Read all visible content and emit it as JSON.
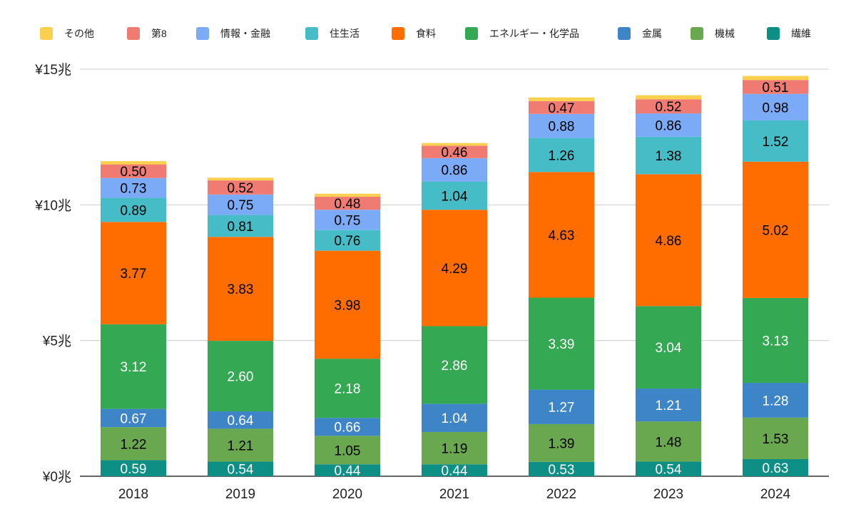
{
  "chart_data": {
    "type": "bar",
    "stacked": true,
    "title": "",
    "xlabel": "",
    "ylabel": "",
    "ylim": [
      0,
      15
    ],
    "yticks": [
      {
        "value": 0,
        "label": "¥0兆"
      },
      {
        "value": 5,
        "label": "¥5兆"
      },
      {
        "value": 10,
        "label": "¥10兆"
      },
      {
        "value": 15,
        "label": "¥15兆"
      }
    ],
    "grid": true,
    "legend_position": "top",
    "categories": [
      "2018",
      "2019",
      "2020",
      "2021",
      "2022",
      "2023",
      "2024"
    ],
    "series": [
      {
        "name": "繊維",
        "color": "#0e8f86",
        "label_color": "#ffffff",
        "values": [
          0.59,
          0.54,
          0.44,
          0.44,
          0.53,
          0.54,
          0.63
        ]
      },
      {
        "name": "機械",
        "color": "#6aa84f",
        "label_color": "#000000",
        "values": [
          1.22,
          1.21,
          1.05,
          1.19,
          1.39,
          1.48,
          1.53
        ]
      },
      {
        "name": "金属",
        "color": "#3d85c6",
        "label_color": "#ffffff",
        "values": [
          0.67,
          0.64,
          0.66,
          1.04,
          1.27,
          1.21,
          1.28
        ]
      },
      {
        "name": "エネルギー・化学品",
        "color": "#34a853",
        "label_color": "#ffffff",
        "values": [
          3.12,
          2.6,
          2.18,
          2.86,
          3.39,
          3.04,
          3.13
        ]
      },
      {
        "name": "食料",
        "color": "#ff6d01",
        "label_color": "#000000",
        "values": [
          3.77,
          3.83,
          3.98,
          4.29,
          4.63,
          4.86,
          5.02
        ]
      },
      {
        "name": "住生活",
        "color": "#46bdc6",
        "label_color": "#000000",
        "values": [
          0.89,
          0.81,
          0.76,
          1.04,
          1.26,
          1.38,
          1.52
        ]
      },
      {
        "name": "情報・金融",
        "color": "#7baaf7",
        "label_color": "#000000",
        "values": [
          0.73,
          0.75,
          0.75,
          0.86,
          0.88,
          0.86,
          0.98
        ]
      },
      {
        "name": "第8",
        "color": "#f07b72",
        "label_color": "#000000",
        "values": [
          0.5,
          0.52,
          0.48,
          0.46,
          0.47,
          0.52,
          0.51
        ]
      },
      {
        "name": "その他",
        "color": "#fcd04f",
        "label_color": "#000000",
        "values": [
          0.12,
          0.1,
          0.11,
          0.1,
          0.14,
          0.15,
          0.15
        ]
      }
    ],
    "value_labels_shown_for": [
      "繊維",
      "機械",
      "金属",
      "エネルギー・化学品",
      "食料",
      "住生活",
      "情報・金融",
      "第8"
    ],
    "legend_order": [
      "その他",
      "第8",
      "情報・金融",
      "住生活",
      "食料",
      "エネルギー・化学品",
      "金属",
      "機械",
      "繊維"
    ]
  }
}
